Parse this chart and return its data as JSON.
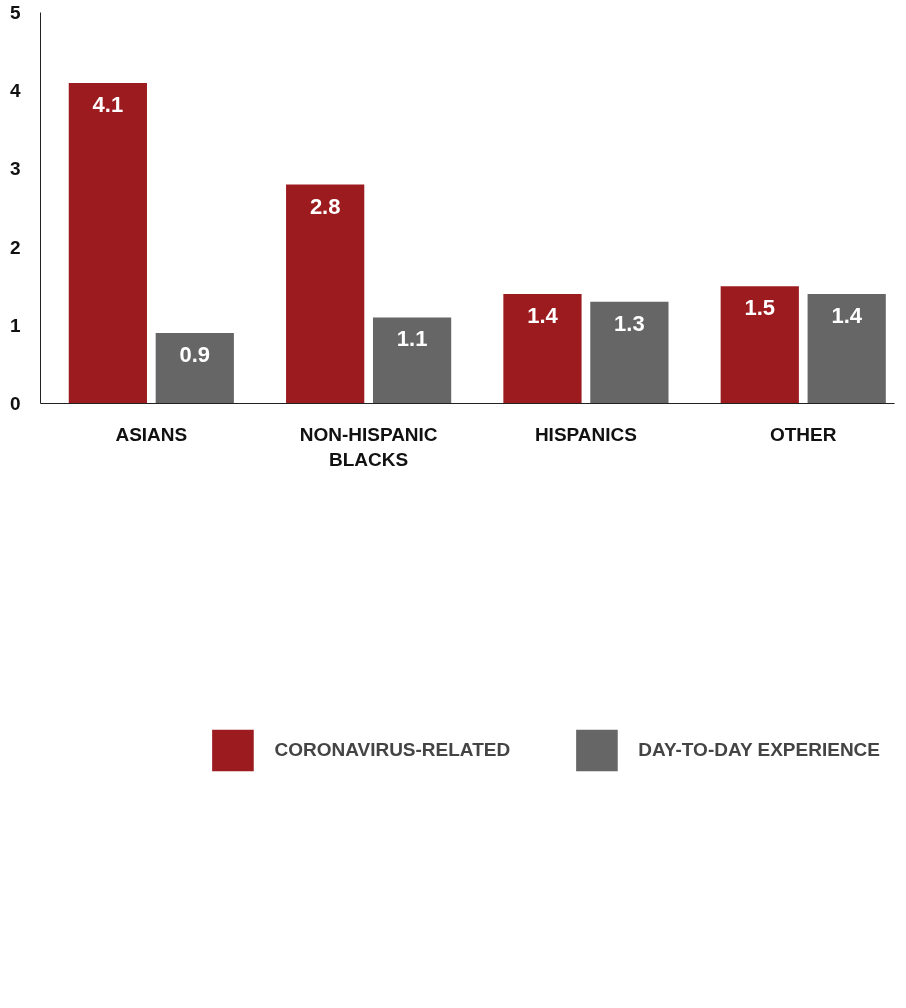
{
  "chart_data": {
    "type": "bar",
    "categories": [
      "ASIANS",
      "NON-HISPANIC BLACKS",
      "HISPANICS",
      "OTHER"
    ],
    "series": [
      {
        "name": "CORONAVIRUS-RELATED",
        "color": "#9b1b1f",
        "values": [
          4.1,
          2.8,
          1.4,
          1.5
        ]
      },
      {
        "name": "DAY-TO-DAY EXPERIENCE",
        "color": "#666666",
        "values": [
          0.9,
          1.1,
          1.3,
          1.4
        ]
      }
    ],
    "ylim": [
      0,
      5
    ],
    "yticks": [
      0,
      1,
      2,
      3,
      4,
      5
    ],
    "data_labels": true,
    "legend": "bottom",
    "grid": false
  }
}
